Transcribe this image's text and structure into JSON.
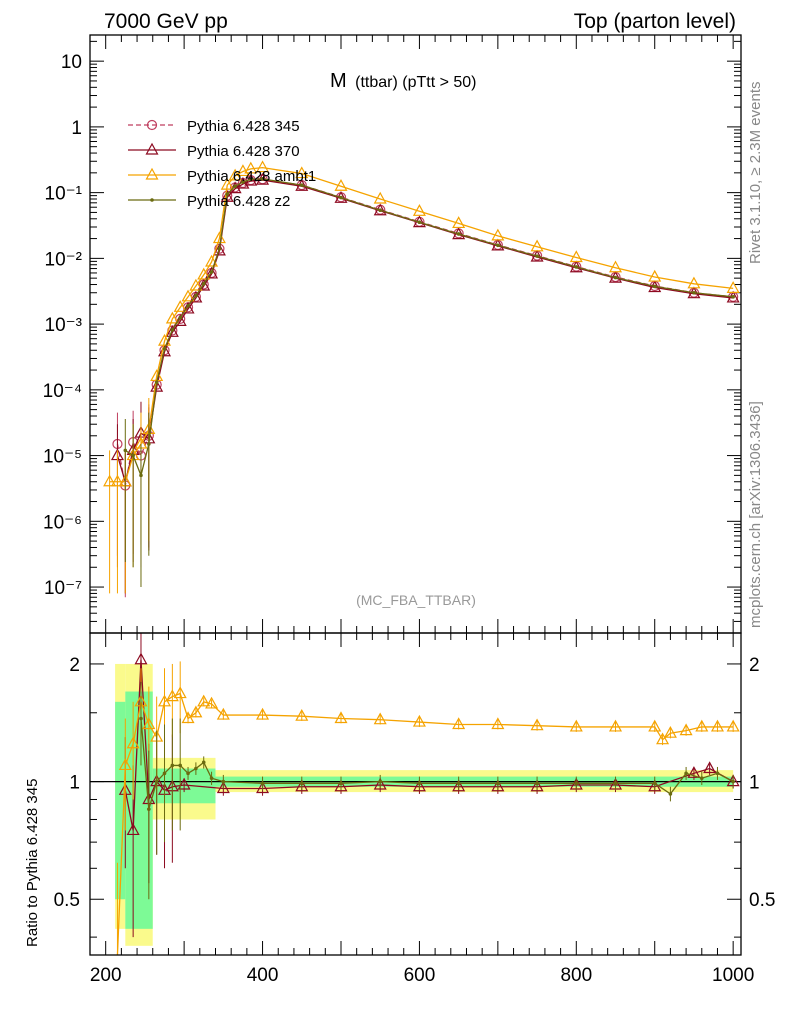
{
  "header": {
    "left": "7000 GeV pp",
    "right": "Top (parton level)"
  },
  "plot_title": {
    "main": "M",
    "sub": "(ttbar) (pTtt > 50)"
  },
  "analysis_label": "(MC_FBA_TTBAR)",
  "side_labels": {
    "rivet": "Rivet 3.1.10, ≥ 2.3M events",
    "mcplots": "mcplots.cern.ch [arXiv:1306.3436]"
  },
  "ratio_ylabel": "Ratio to Pythia 6.428 345",
  "colors": {
    "p345": "#bf3f5f",
    "p370": "#8c0a20",
    "ambt1": "#f5a300",
    "z2": "#6b6b10",
    "band_green": "#7dfa96",
    "band_yellow": "#fafa8c"
  },
  "chart_data": [
    {
      "type": "line",
      "panel": "main",
      "yscale": "log",
      "xlim": [
        180,
        1010
      ],
      "ylim": [
        2e-08,
        25
      ],
      "yticks": [
        "10",
        "1",
        "10⁻¹",
        "10⁻²",
        "10⁻³",
        "10⁻⁴",
        "10⁻⁵",
        "10⁻⁶",
        "10⁻⁷"
      ],
      "legend_position": "top-left",
      "series": [
        {
          "name": "Pythia 6.428 345",
          "marker": "open-circle",
          "dashed": true,
          "x": [
            215,
            225,
            235,
            245,
            255,
            265,
            275,
            285,
            295,
            305,
            315,
            325,
            335,
            345,
            355,
            365,
            375,
            385,
            400,
            450,
            500,
            550,
            600,
            650,
            700,
            750,
            800,
            850,
            900,
            950,
            1000
          ],
          "y": [
            1.5e-05,
            3.5e-06,
            1.6e-05,
            1e-05,
            2e-05,
            0.00012,
            0.0004,
            0.0008,
            0.0012,
            0.0018,
            0.0026,
            0.004,
            0.006,
            0.014,
            0.09,
            0.12,
            0.14,
            0.155,
            0.16,
            0.13,
            0.085,
            0.055,
            0.036,
            0.024,
            0.016,
            0.011,
            0.0075,
            0.0052,
            0.0038,
            0.003,
            0.0026
          ]
        },
        {
          "name": "Pythia 6.428 370",
          "marker": "open-triangle",
          "dashed": false,
          "x": [
            215,
            225,
            235,
            245,
            255,
            265,
            275,
            285,
            295,
            305,
            315,
            325,
            335,
            345,
            355,
            365,
            375,
            385,
            400,
            450,
            500,
            550,
            600,
            650,
            700,
            750,
            800,
            850,
            900,
            950,
            1000
          ],
          "y": [
            1e-05,
            4e-06,
            1.2e-05,
            2.2e-05,
            1.8e-05,
            0.00011,
            0.00038,
            0.00075,
            0.0011,
            0.0017,
            0.0025,
            0.0038,
            0.0058,
            0.013,
            0.085,
            0.115,
            0.135,
            0.15,
            0.155,
            0.125,
            0.082,
            0.053,
            0.035,
            0.023,
            0.0155,
            0.0105,
            0.0072,
            0.005,
            0.0036,
            0.0029,
            0.0025
          ]
        },
        {
          "name": "Pythia 6.428 ambt1",
          "marker": "open-triangle",
          "dashed": false,
          "x": [
            205,
            215,
            225,
            235,
            245,
            255,
            265,
            275,
            285,
            295,
            305,
            315,
            325,
            335,
            345,
            355,
            365,
            375,
            385,
            400,
            450,
            500,
            550,
            600,
            650,
            700,
            750,
            800,
            850,
            900,
            950,
            1000
          ],
          "y": [
            4e-06,
            4e-06,
            4e-06,
            1e-05,
            1.5e-05,
            2.5e-05,
            0.00016,
            0.00055,
            0.0012,
            0.0018,
            0.0026,
            0.0038,
            0.0056,
            0.0088,
            0.02,
            0.13,
            0.18,
            0.21,
            0.23,
            0.24,
            0.195,
            0.125,
            0.08,
            0.052,
            0.034,
            0.022,
            0.015,
            0.0103,
            0.0072,
            0.0052,
            0.0041,
            0.0035
          ]
        },
        {
          "name": "Pythia 6.428 z2",
          "marker": "dot",
          "dashed": false,
          "x": [
            225,
            235,
            245,
            255,
            265,
            275,
            285,
            295,
            305,
            315,
            325,
            335,
            345,
            355,
            365,
            375,
            385,
            400,
            450,
            500,
            550,
            600,
            650,
            700,
            750,
            800,
            850,
            900,
            950,
            1000
          ],
          "y": [
            1.2e-05,
            1e-05,
            5e-06,
            1.5e-05,
            0.00013,
            0.00042,
            0.00082,
            0.00125,
            0.0019,
            0.0027,
            0.0041,
            0.0062,
            0.014,
            0.095,
            0.125,
            0.145,
            0.16,
            0.162,
            0.13,
            0.084,
            0.054,
            0.0355,
            0.0235,
            0.0158,
            0.0108,
            0.0074,
            0.0051,
            0.00375,
            0.003,
            0.0026
          ]
        }
      ]
    },
    {
      "type": "line",
      "panel": "ratio",
      "yscale": "log",
      "xlim": [
        180,
        1010
      ],
      "ylim": [
        0.36,
        2.4
      ],
      "xticks": [
        200,
        400,
        600,
        800,
        1000
      ],
      "yticks": [
        0.5,
        1,
        2
      ],
      "reference_line": 1,
      "series": [
        {
          "name": "Pythia 6.428 370",
          "x": [
            225,
            235,
            245,
            255,
            265,
            275,
            285,
            300,
            350,
            400,
            450,
            500,
            550,
            600,
            650,
            700,
            750,
            800,
            850,
            900,
            950,
            970,
            1000
          ],
          "y": [
            0.95,
            0.75,
            2.05,
            0.9,
            1.0,
            0.95,
            0.97,
            0.98,
            0.96,
            0.96,
            0.97,
            0.97,
            0.98,
            0.97,
            0.97,
            0.97,
            0.97,
            0.98,
            0.98,
            0.97,
            1.05,
            1.08,
            1.0
          ]
        },
        {
          "name": "Pythia 6.428 ambt1",
          "x": [
            215,
            225,
            235,
            245,
            255,
            265,
            275,
            285,
            295,
            305,
            315,
            325,
            335,
            350,
            400,
            450,
            500,
            550,
            600,
            650,
            700,
            750,
            800,
            850,
            900,
            910,
            920,
            940,
            960,
            980,
            1000
          ],
          "y": [
            0.27,
            1.1,
            1.25,
            1.6,
            1.4,
            1.3,
            1.6,
            1.65,
            1.68,
            1.45,
            1.5,
            1.6,
            1.58,
            1.48,
            1.48,
            1.47,
            1.45,
            1.44,
            1.42,
            1.4,
            1.4,
            1.39,
            1.38,
            1.38,
            1.38,
            1.28,
            1.33,
            1.35,
            1.38,
            1.38,
            1.38
          ]
        },
        {
          "name": "Pythia 6.428 z2",
          "x": [
            245,
            255,
            265,
            275,
            285,
            295,
            305,
            315,
            325,
            335,
            350,
            400,
            450,
            500,
            550,
            600,
            650,
            700,
            750,
            800,
            850,
            900,
            920,
            940,
            960,
            980,
            1000
          ],
          "y": [
            1.45,
            0.85,
            1.0,
            1.05,
            1.1,
            1.1,
            1.05,
            1.08,
            1.12,
            1.02,
            1.0,
            0.99,
            0.99,
            0.99,
            1.0,
            0.99,
            0.99,
            0.99,
            0.99,
            0.99,
            0.99,
            0.99,
            0.93,
            1.05,
            1.02,
            1.05,
            1.0
          ]
        }
      ]
    }
  ]
}
